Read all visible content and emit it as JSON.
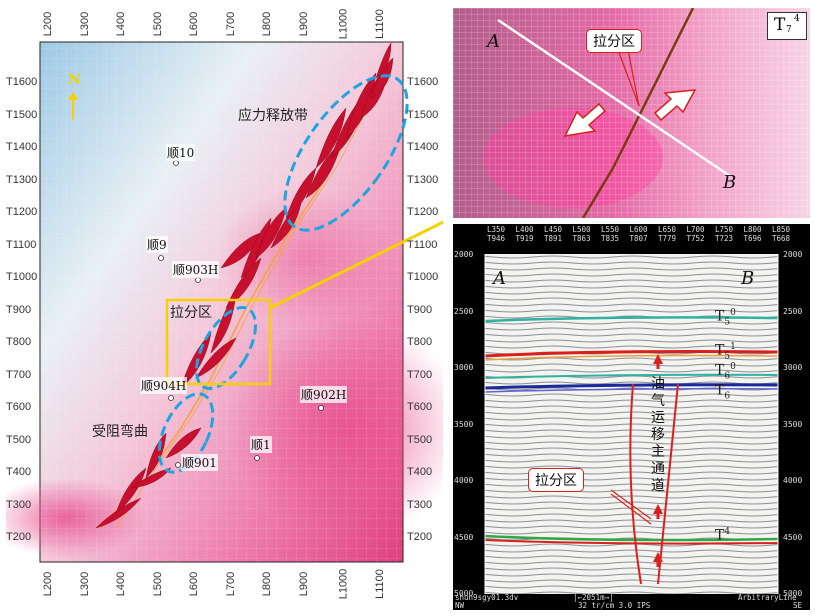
{
  "map": {
    "top_inlines": [
      "L200",
      "L300",
      "L400",
      "L500",
      "L600",
      "L700",
      "L800",
      "L900",
      "L1000",
      "L1100"
    ],
    "bottom_inlines": [
      "L200",
      "L300",
      "L400",
      "L500",
      "L600",
      "L700",
      "L800",
      "L900",
      "L1000",
      "L1100"
    ],
    "left_traces": [
      "T1600",
      "T1500",
      "T1400",
      "T1300",
      "T1200",
      "T1100",
      "T1000",
      "T900",
      "T800",
      "T700",
      "T600",
      "T500",
      "T400",
      "T300",
      "T200"
    ],
    "right_traces": [
      "T1600",
      "T1500",
      "T1400",
      "T1300",
      "T1200",
      "T1100",
      "T1000",
      "T900",
      "T800",
      "T700",
      "T600",
      "T500",
      "T400",
      "T300",
      "T200"
    ],
    "north_label": "N",
    "zone_stress_release": "应力释放带",
    "zone_pullapart": "拉分区",
    "zone_restraining": "受阻弯曲",
    "wells": [
      {
        "name": "顺10"
      },
      {
        "name": "顺9"
      },
      {
        "name": "顺903H"
      },
      {
        "name": "顺904H"
      },
      {
        "name": "顺902H"
      },
      {
        "name": "顺1"
      },
      {
        "name": "顺901"
      }
    ]
  },
  "inset_map": {
    "label_a": "A",
    "label_b": "B",
    "horizon_main": "T",
    "horizon_sub": "7",
    "horizon_sup": "4",
    "callout": "拉分区"
  },
  "section": {
    "header_inlines": [
      "L350",
      "L400",
      "L450",
      "L500",
      "L550",
      "L600",
      "L650",
      "L700",
      "L750",
      "L800",
      "L850"
    ],
    "header_traces": [
      "T946",
      "T919",
      "T891",
      "T863",
      "T835",
      "T807",
      "T779",
      "T752",
      "T723",
      "T696",
      "T668"
    ],
    "depth_ticks": [
      "2000",
      "2500",
      "3000",
      "3500",
      "4000",
      "4500",
      "5000"
    ],
    "label_a": "A",
    "label_b": "B",
    "h1_main": "T",
    "h1_sub": "5",
    "h1_sup": "0",
    "h2_main": "T",
    "h2_sub": "5",
    "h2_sup": "1",
    "h3_main": "T",
    "h3_sub": "6",
    "h3_sup": "0",
    "h4_main": "T",
    "h4_sub": "6",
    "h4_sup": "",
    "h5_main": "T",
    "h5_sub": "",
    "h5_sup": "4",
    "channel_label": "油气运移主通道",
    "callout": "拉分区",
    "footer_file": "shun9sgy01.3dv",
    "footer_scale": "|←2051m→|",
    "footer_line": "ArbitraryLine",
    "footer_left": "NW",
    "footer_mid": "32 tr/cm 3.0 IPS",
    "footer_right": "SE"
  }
}
